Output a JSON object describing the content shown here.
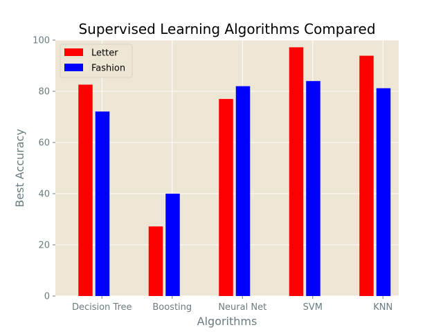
{
  "colors": {
    "background": "#ffffff",
    "plot_background": "#ede6d4",
    "grid": "#ffffff",
    "text": "#6b7b80"
  },
  "chart_data": {
    "type": "bar",
    "title": "Supervised Learning Algorithms Compared",
    "xlabel": "Algorithms",
    "ylabel": "Best Accuracy",
    "categories": [
      "Decision Tree",
      "Boosting",
      "Neural Net",
      "SVM",
      "KNN"
    ],
    "series": [
      {
        "name": "Letter",
        "color": "#ff0000",
        "values": [
          82.6,
          27.2,
          77.0,
          97.2,
          93.9
        ]
      },
      {
        "name": "Fashion",
        "color": "#0000ff",
        "values": [
          72.1,
          40.0,
          82.0,
          84.0,
          81.2
        ]
      }
    ],
    "ylim": [
      0,
      100
    ],
    "yticks": [
      0,
      20,
      40,
      60,
      80,
      100
    ],
    "grid": true,
    "legend": {
      "position": "top-left"
    }
  }
}
